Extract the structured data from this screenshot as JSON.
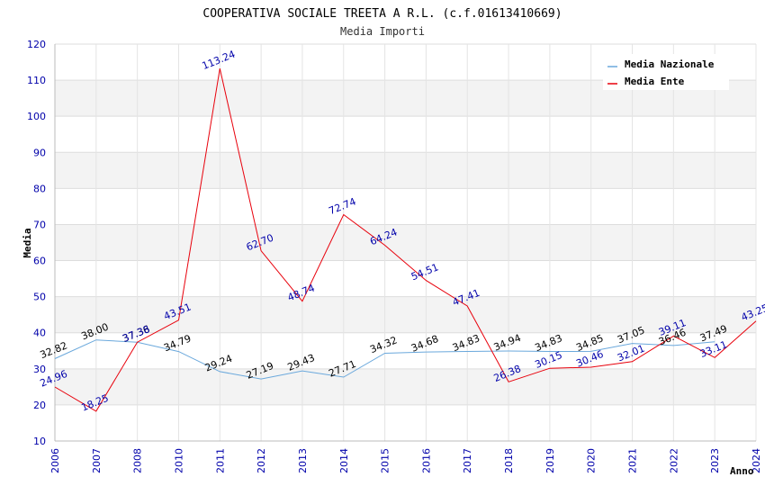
{
  "chart_data": {
    "type": "line",
    "title": "COOPERATIVA SOCIALE TREETA A R.L. (c.f.01613410669)",
    "subtitle": "Media Importi",
    "xlabel": "Anno",
    "ylabel": "Media",
    "ylim": [
      10,
      120
    ],
    "yticks": [
      "10",
      "20",
      "30",
      "40",
      "50",
      "60",
      "70",
      "80",
      "90",
      "100",
      "110",
      "120"
    ],
    "categories": [
      "2006",
      "2007",
      "2008",
      "2010",
      "2011",
      "2012",
      "2013",
      "2014",
      "2015",
      "2016",
      "2017",
      "2018",
      "2019",
      "2020",
      "2021",
      "2022",
      "2023",
      "2024"
    ],
    "series": [
      {
        "name": "Media Nazionale",
        "color": "#6aa8dc",
        "label_color": "#000000",
        "values": [
          32.82,
          38.0,
          37.36,
          34.79,
          29.24,
          27.19,
          29.43,
          27.71,
          34.32,
          34.68,
          34.83,
          34.94,
          34.83,
          34.85,
          37.05,
          36.46,
          37.49,
          null
        ],
        "labels": [
          "32.82",
          "38.00",
          "37.36",
          "34.79",
          "29.24",
          "27.19",
          "29.43",
          "27.71",
          "34.32",
          "34.68",
          "34.83",
          "34.94",
          "34.83",
          "34.85",
          "37.05",
          "36.46",
          "37.49",
          ""
        ]
      },
      {
        "name": "Media Ente",
        "color": "#e8000b",
        "label_color": "#0000aa",
        "values": [
          24.96,
          18.25,
          37.38,
          43.51,
          113.24,
          62.7,
          48.74,
          72.74,
          64.24,
          54.51,
          47.41,
          26.38,
          30.15,
          30.46,
          32.01,
          39.11,
          33.11,
          43.25
        ],
        "labels": [
          "24.96",
          "18.25",
          "37.38",
          "43.51",
          "113.24",
          "62.70",
          "48.74",
          "72.74",
          "64.24",
          "54.51",
          "47.41",
          "26.38",
          "30.15",
          "30.46",
          "32.01",
          "39.11",
          "33.11",
          "43.25"
        ]
      }
    ],
    "grid": true,
    "legend_position": "top-right"
  }
}
